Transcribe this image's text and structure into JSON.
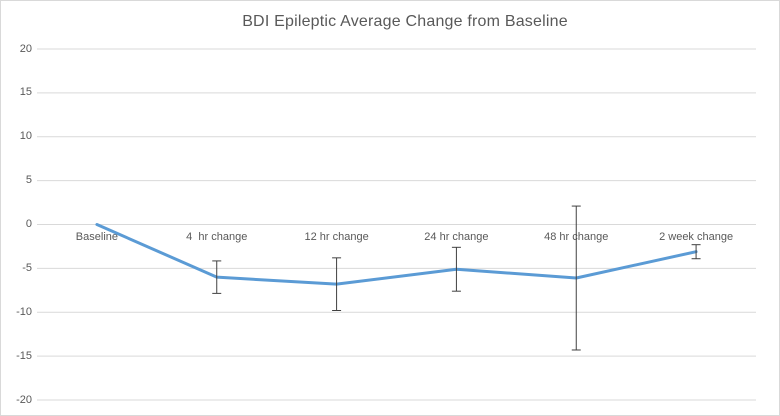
{
  "window": {
    "background_color": "#ffffff",
    "border_color": "#d9d9d9"
  },
  "chart_data": {
    "type": "line",
    "title": "BDI Epileptic Average Change from Baseline",
    "categories": [
      "Baseline",
      "4  hr change",
      "12 hr change",
      "24 hr change",
      "48 hr change",
      "2 week change"
    ],
    "series": [
      {
        "name": "BDI epileptic average change",
        "values": [
          0,
          -6.0,
          -6.8,
          -5.1,
          -6.1,
          -3.1
        ],
        "error_bars": [
          null,
          1.85,
          3.0,
          2.5,
          8.2,
          0.8
        ],
        "color": "#5b9bd5"
      }
    ],
    "xlabel": "",
    "ylabel": "",
    "ylim": [
      -20,
      20
    ],
    "y_ticks": [
      20,
      15,
      10,
      5,
      0,
      -5,
      -10,
      -15,
      -20
    ],
    "grid": true,
    "legend": "none",
    "gridline_color": "#d9d9d9",
    "error_bar_color": "#404040",
    "text_color": "#595959"
  }
}
